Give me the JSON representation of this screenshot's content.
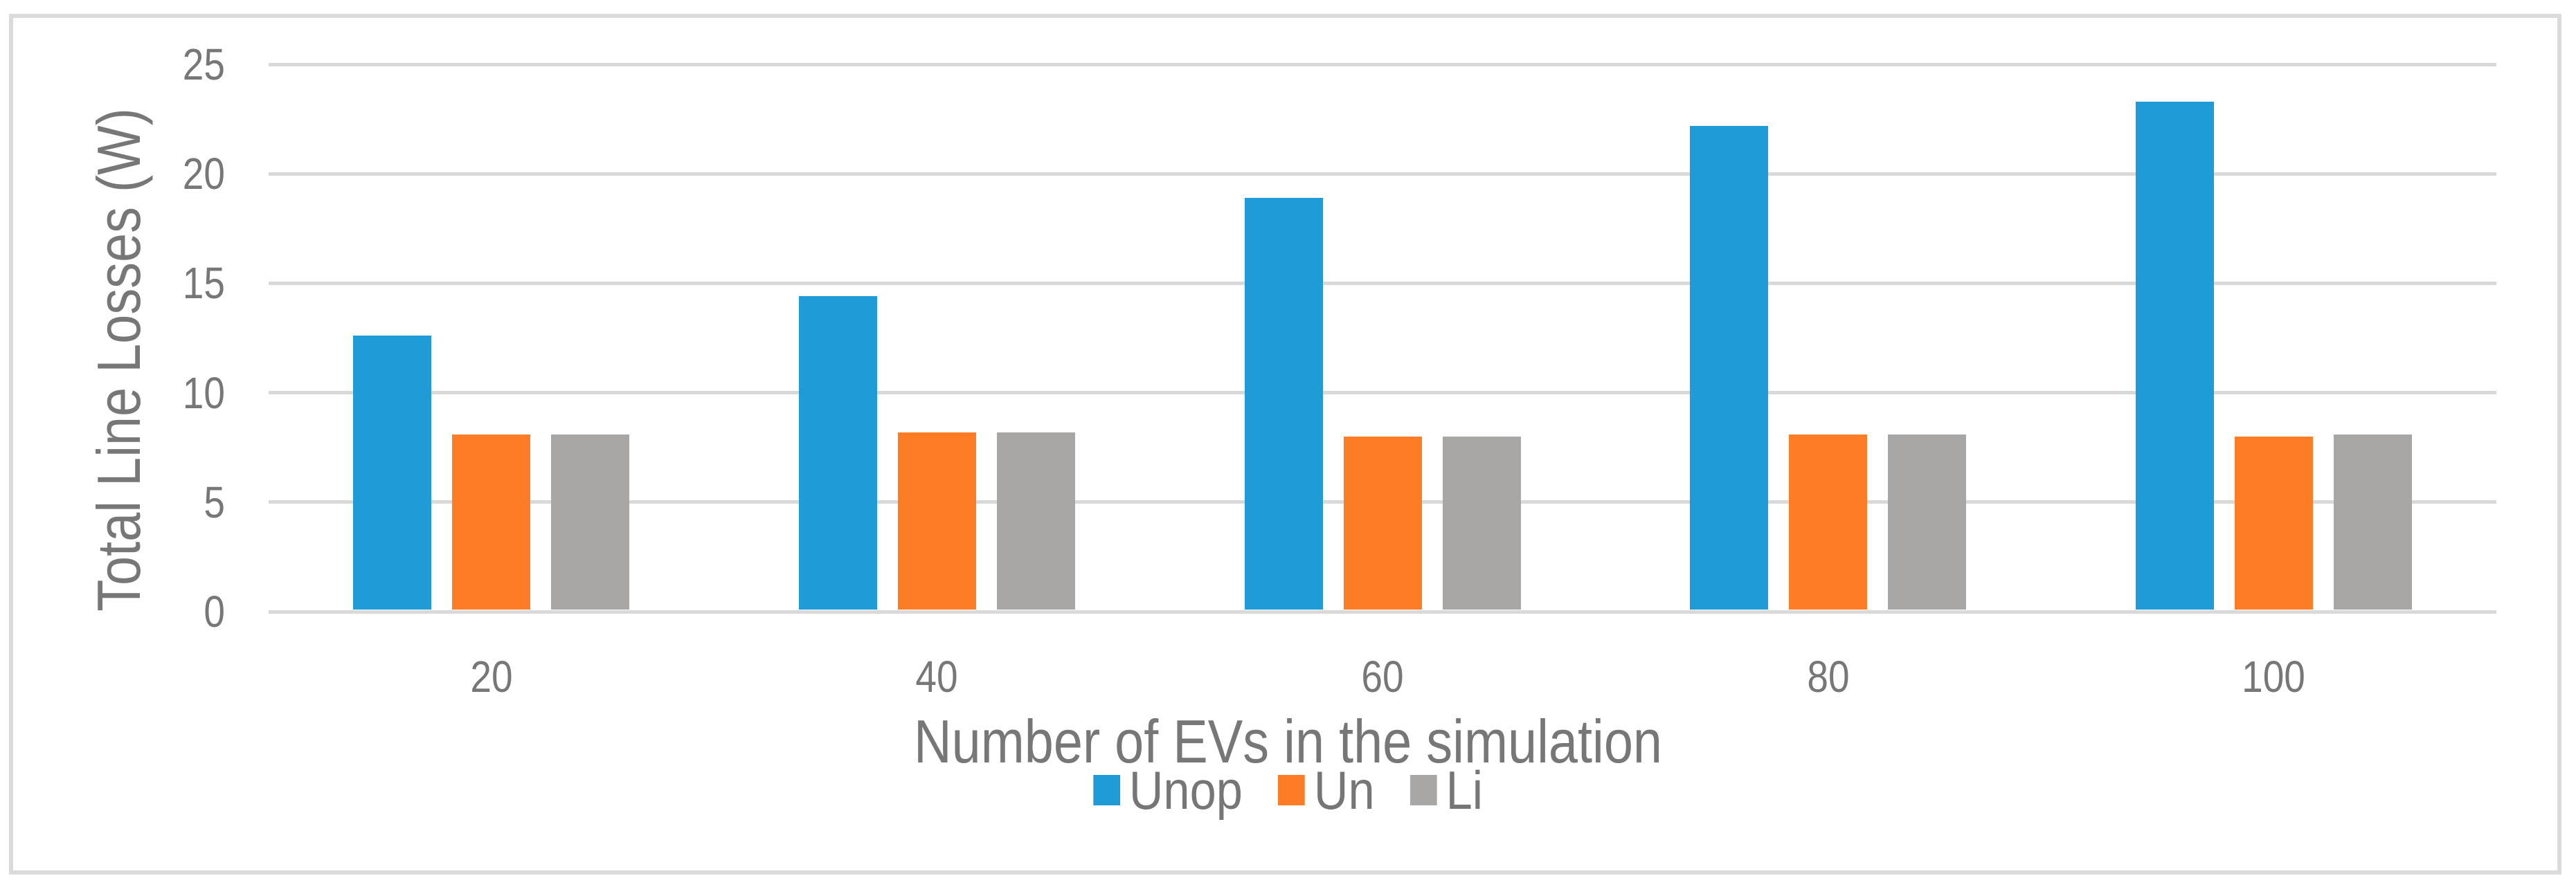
{
  "figure": {
    "background_color": "#FFFFFF",
    "border_color": "#DBDBDB"
  },
  "chart_data": {
    "type": "bar",
    "title": "",
    "xlabel": "Number of EVs in the simulation",
    "ylabel": "Total Line Losses (W)",
    "categories": [
      "20",
      "40",
      "60",
      "80",
      "100"
    ],
    "series": [
      {
        "name": "Unop",
        "color": "#1F9BD7",
        "values": [
          12.6,
          14.4,
          18.9,
          22.2,
          23.3
        ]
      },
      {
        "name": "Un",
        "color": "#FC7D26",
        "values": [
          8.1,
          8.2,
          8.0,
          8.1,
          8.0
        ]
      },
      {
        "name": "Li",
        "color": "#A8A7A6",
        "values": [
          8.1,
          8.2,
          8.0,
          8.1,
          8.1
        ]
      }
    ],
    "ylim": [
      0,
      25
    ],
    "yticks": [
      0,
      5,
      10,
      15,
      20,
      25
    ],
    "grid": "horizontal",
    "gridline_color": "#D9D9D9",
    "axis_text_color": "#777777",
    "legend_position": "bottom",
    "legend_entries": [
      "Unop",
      "Un",
      "Li"
    ]
  }
}
